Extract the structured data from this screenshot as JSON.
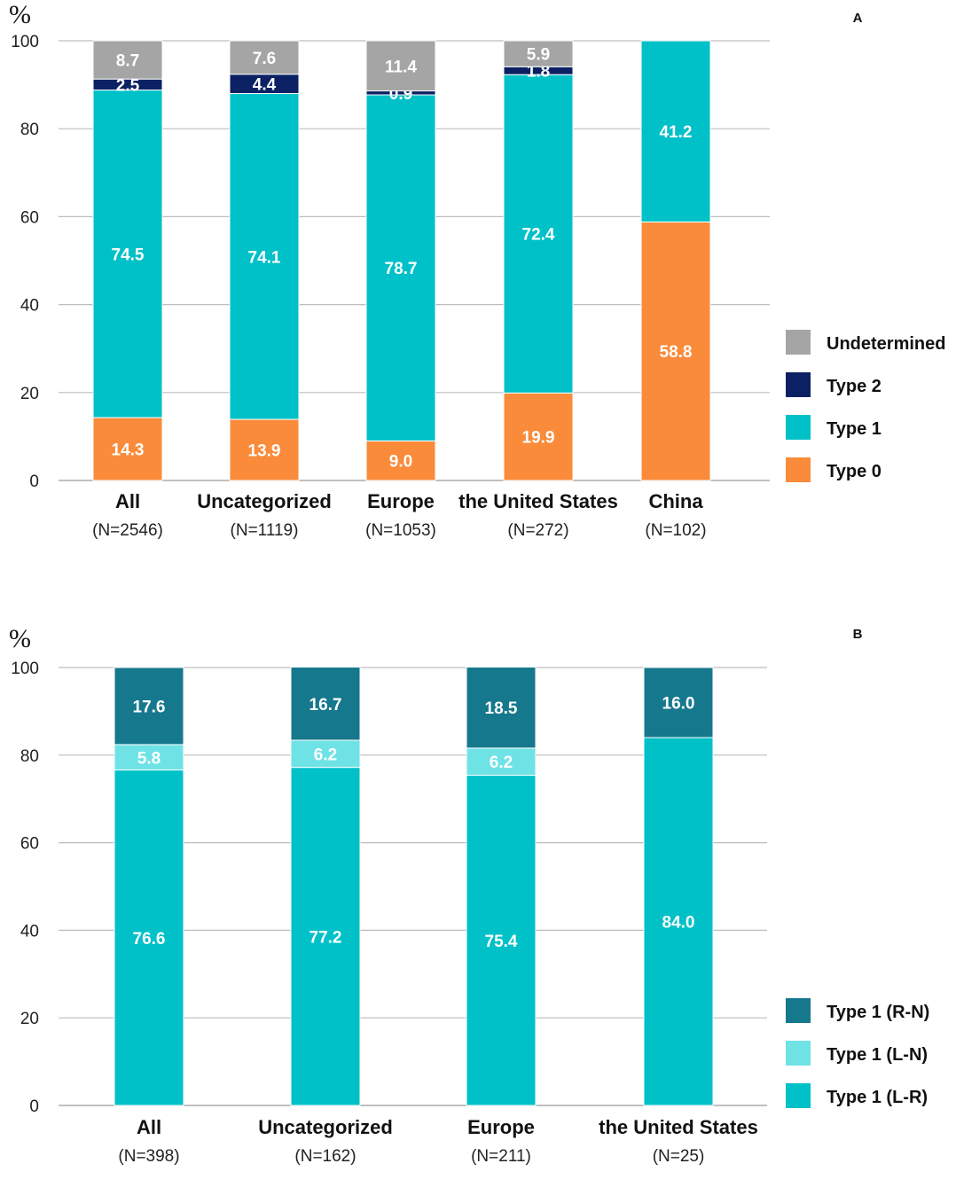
{
  "chart_data": [
    {
      "panel_label": "A",
      "type": "bar",
      "stacked": true,
      "ylabel": "%",
      "ylim": [
        0,
        100
      ],
      "yticks": [
        0,
        20,
        40,
        60,
        80,
        100
      ],
      "grid": true,
      "legend_position": "right",
      "categories": [
        {
          "name": "All",
          "n": "(N=2546)"
        },
        {
          "name": "Uncategorized",
          "n": "(N=1119)"
        },
        {
          "name": "Europe",
          "n": "(N=1053)"
        },
        {
          "name": "the United States",
          "n": "(N=272)"
        },
        {
          "name": "China",
          "n": "(N=102)"
        }
      ],
      "series": [
        {
          "name": "Type 0",
          "color": "#f98b3a",
          "values": [
            14.3,
            13.9,
            9.0,
            19.9,
            58.8
          ],
          "labels": [
            "14.3",
            "13.9",
            "9.0",
            "19.9",
            "58.8"
          ]
        },
        {
          "name": "Type 1",
          "color": "#00c0c8",
          "values": [
            74.5,
            74.1,
            78.7,
            72.4,
            41.2
          ],
          "labels": [
            "74.5",
            "74.1",
            "78.7",
            "72.4",
            "41.2"
          ]
        },
        {
          "name": "Type 2",
          "color": "#0b2163",
          "values": [
            2.5,
            4.4,
            0.9,
            1.8,
            0
          ],
          "labels": [
            "2.5",
            "4.4",
            "0.9",
            "1.8",
            ""
          ]
        },
        {
          "name": "Undetermined",
          "color": "#a5a5a5",
          "values": [
            8.7,
            7.6,
            11.4,
            5.9,
            0
          ],
          "labels": [
            "8.7",
            "7.6",
            "11.4",
            "5.9",
            ""
          ]
        }
      ]
    },
    {
      "panel_label": "B",
      "type": "bar",
      "stacked": true,
      "ylabel": "%",
      "ylim": [
        0,
        100
      ],
      "yticks": [
        0,
        20,
        40,
        60,
        80,
        100
      ],
      "grid": true,
      "legend_position": "right",
      "categories": [
        {
          "name": "All",
          "n": "(N=398)"
        },
        {
          "name": "Uncategorized",
          "n": "(N=162)"
        },
        {
          "name": "Europe",
          "n": "(N=211)"
        },
        {
          "name": "the United States",
          "n": "(N=25)"
        }
      ],
      "series": [
        {
          "name": "Type 1 (L-R)",
          "color": "#00c0c8",
          "values": [
            76.6,
            77.2,
            75.4,
            84.0
          ],
          "labels": [
            "76.6",
            "77.2",
            "75.4",
            "84.0"
          ]
        },
        {
          "name": "Type 1 (L-N)",
          "color": "#6fe2e6",
          "values": [
            5.8,
            6.2,
            6.2,
            0
          ],
          "labels": [
            "5.8",
            "6.2",
            "6.2",
            ""
          ]
        },
        {
          "name": "Type 1 (R-N)",
          "color": "#16788d",
          "values": [
            17.6,
            16.7,
            18.5,
            16.0
          ],
          "labels": [
            "17.6",
            "16.7",
            "18.5",
            "16.0"
          ]
        }
      ]
    }
  ]
}
